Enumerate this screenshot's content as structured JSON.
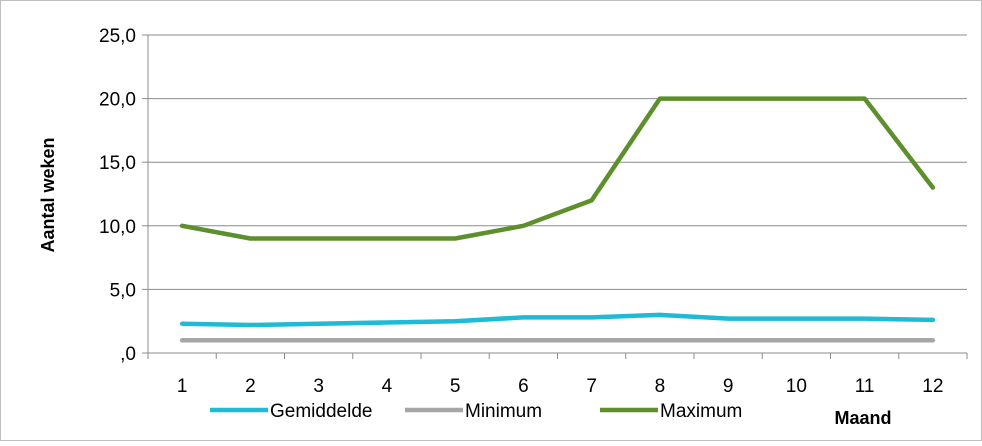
{
  "chart_data": {
    "type": "line",
    "title": "",
    "xlabel": "Maand",
    "ylabel": "Aantal weken",
    "categories": [
      "1",
      "2",
      "3",
      "4",
      "5",
      "6",
      "7",
      "8",
      "9",
      "10",
      "11",
      "12"
    ],
    "ylim": [
      0,
      25
    ],
    "y_ticks": [
      0,
      5,
      10,
      15,
      20,
      25
    ],
    "y_tick_labels": [
      ",0",
      "5,0",
      "10,0",
      "15,0",
      "20,0",
      "25,0"
    ],
    "grid": true,
    "legend_position": "bottom",
    "series": [
      {
        "name": "Gemiddelde",
        "color": "#1FBAD6",
        "values": [
          2.3,
          2.2,
          2.3,
          2.4,
          2.5,
          2.8,
          2.8,
          3.0,
          2.7,
          2.7,
          2.7,
          2.6
        ]
      },
      {
        "name": "Minimum",
        "color": "#A6A6A6",
        "values": [
          1,
          1,
          1,
          1,
          1,
          1,
          1,
          1,
          1,
          1,
          1,
          1
        ]
      },
      {
        "name": "Maximum",
        "color": "#5E8F2D",
        "values": [
          10,
          9,
          9,
          9,
          9,
          10,
          12,
          20,
          20,
          20,
          20,
          13
        ]
      }
    ]
  }
}
